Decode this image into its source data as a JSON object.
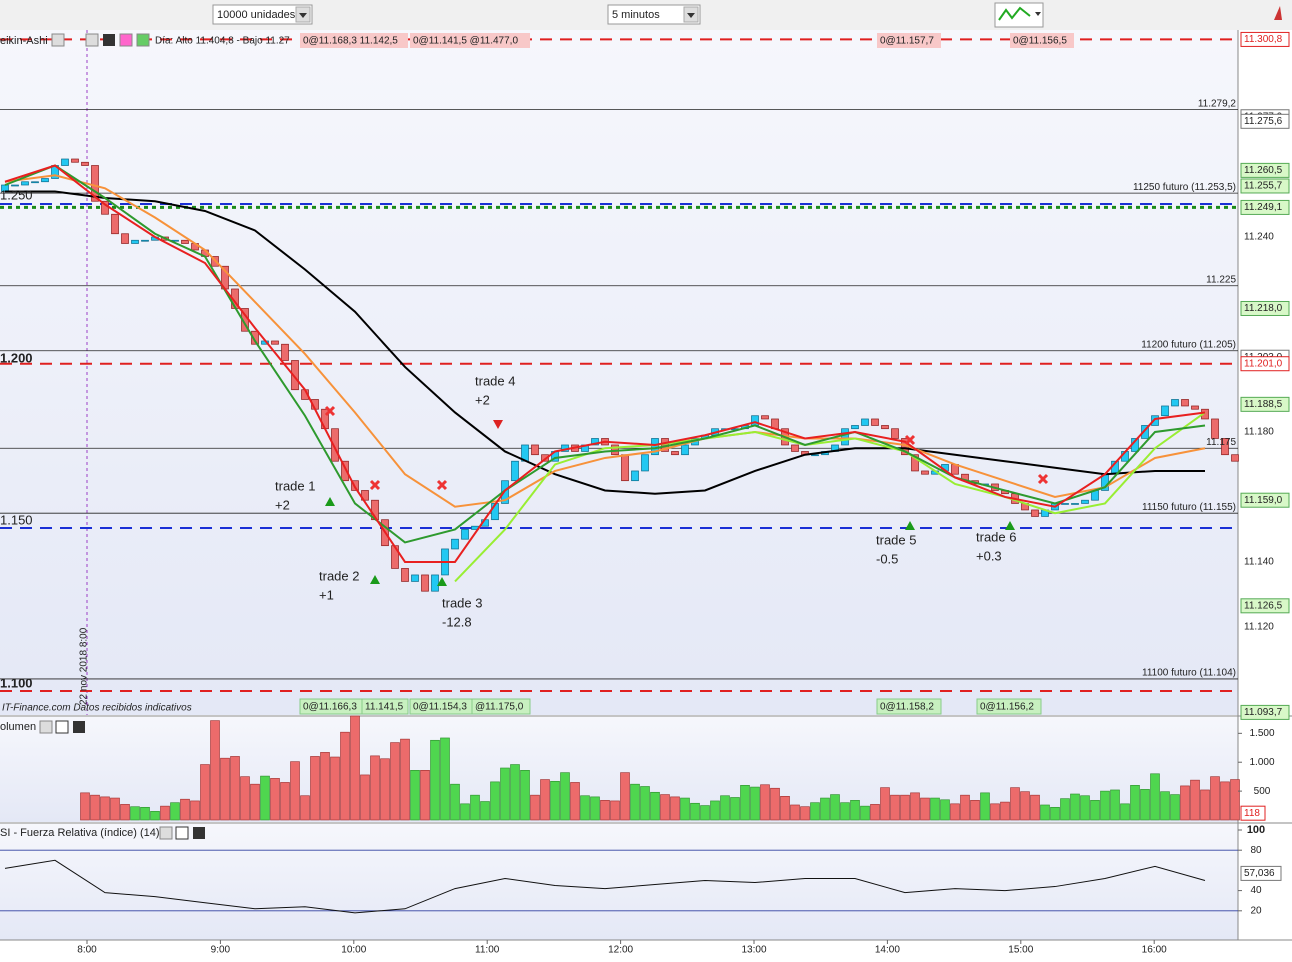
{
  "toolbar": {
    "quantity": "10000 unidades",
    "interval": "5 minutos"
  },
  "main_chart": {
    "indicator": "eikin-Ashi",
    "day_info": "Día: Alto 11.404,8 - Bajo 11.27",
    "source": "IT-Finance.com Datos recibidos indicativos",
    "date_marker": "22 nov 2018 8:00",
    "ylim": [
      11092.9,
      11303.7
    ],
    "left_labels": [
      "1.250",
      "1.200",
      "1.150",
      "1.100"
    ],
    "right_labels": [
      {
        "value": 11300.8,
        "label": "11.300,8",
        "kind": "red",
        "line": "red-dashed"
      },
      {
        "value": 11277.0,
        "label": "11.277,0",
        "kind": "white"
      },
      {
        "value": 11275.6,
        "label": "11.275,6",
        "kind": "white"
      },
      {
        "value": 11260.5,
        "label": "11.260,5",
        "kind": "green"
      },
      {
        "value": 11255.7,
        "label": "11.255,7",
        "kind": "green"
      },
      {
        "value": 11249.1,
        "label": "11.249,1",
        "kind": "green",
        "line": "green-dotted"
      },
      {
        "value": 11240,
        "label": "11.240",
        "kind": "plain"
      },
      {
        "value": 11218.0,
        "label": "11.218,0",
        "kind": "green"
      },
      {
        "value": 11203.0,
        "label": "11.203,0",
        "kind": "white"
      },
      {
        "value": 11201.0,
        "label": "11.201,0",
        "kind": "red",
        "line": "red-dashed"
      },
      {
        "value": 11188.5,
        "label": "11.188,5",
        "kind": "green"
      },
      {
        "value": 11180,
        "label": "11.180",
        "kind": "plain"
      },
      {
        "value": 11159.0,
        "label": "11.159,0",
        "kind": "green"
      },
      {
        "value": 11140,
        "label": "11.140",
        "kind": "plain"
      },
      {
        "value": 11126.5,
        "label": "11.126,5",
        "kind": "green"
      },
      {
        "value": 11120,
        "label": "11.120",
        "kind": "plain"
      },
      {
        "value": 11093.7,
        "label": "11.093,7",
        "kind": "green"
      }
    ],
    "levels": [
      {
        "value": 11279.2,
        "label": "11.279,2"
      },
      {
        "value": 11253.5,
        "label": "11250 futuro (11.253,5)"
      },
      {
        "value": 11225,
        "label": "11.225"
      },
      {
        "value": 11205,
        "label": "11200 futuro (11.205)"
      },
      {
        "value": 11175,
        "label": "11.175"
      },
      {
        "value": 11155,
        "label": "11150 futuro (11.155)"
      },
      {
        "value": 11104,
        "label": "11100 futuro (11.104)"
      }
    ],
    "order_tags_top": [
      "0@11.168,3 11.142,5",
      "0@11.141,5 @11.477,0",
      "0@11.157,7",
      "0@11.156,5"
    ],
    "order_tags_bottom": [
      "0@11.166,3",
      "11.141,5",
      "0@11.154,3",
      "@11.175,0",
      "0@11.158,2",
      "0@11.156,2"
    ],
    "trades": [
      {
        "name": "trade 1",
        "result": "+2"
      },
      {
        "name": "trade 2",
        "result": "+1"
      },
      {
        "name": "trade 3",
        "result": "-12.8"
      },
      {
        "name": "trade 4",
        "result": "+2"
      },
      {
        "name": "trade 5",
        "result": "-0.5"
      },
      {
        "name": "trade 6",
        "result": "+0.3"
      }
    ],
    "candles": {
      "open": [
        11254,
        11256,
        11256,
        11257,
        11257,
        11258,
        11262,
        11264,
        11263,
        11262,
        11251,
        11247,
        11241,
        11238,
        11239,
        11239,
        11240,
        11239,
        11239,
        11238,
        11236,
        11234,
        11231,
        11224,
        11218,
        11211,
        11207,
        11208,
        11207,
        11202,
        11193,
        11190,
        11187,
        11181,
        11171,
        11165,
        11162,
        11159,
        11153,
        11145,
        11138,
        11134,
        11136,
        11131,
        11136,
        11144,
        11147,
        11150,
        11151,
        11153,
        11158,
        11165,
        11171,
        11176,
        11173,
        11171,
        11174,
        11176,
        11174,
        11176,
        11178,
        11176,
        11173,
        11165,
        11168,
        11173,
        11178,
        11174,
        11173,
        11176,
        11178,
        11179,
        11181,
        11181,
        11181,
        11182,
        11185,
        11184,
        11181,
        11176,
        11174,
        11173,
        11173,
        11174,
        11176,
        11181,
        11182,
        11184,
        11182,
        11181,
        11178,
        11173,
        11168,
        11167,
        11168,
        11170,
        11167,
        11165,
        11164,
        11164,
        11162,
        11161,
        11158,
        11156,
        11154,
        11156,
        11158,
        11158,
        11158,
        11159,
        11162,
        11167,
        11171,
        11174,
        11178,
        11182,
        11185,
        11188,
        11190,
        11188,
        11187,
        11184,
        11178,
        11173
      ],
      "close": [
        11256,
        11256,
        11257,
        11257,
        11258,
        11262,
        11264,
        11263,
        11262,
        11251,
        11247,
        11241,
        11238,
        11239,
        11239,
        11240,
        11239,
        11239,
        11238,
        11236,
        11234,
        11231,
        11224,
        11218,
        11211,
        11207,
        11208,
        11207,
        11202,
        11193,
        11190,
        11187,
        11181,
        11171,
        11165,
        11162,
        11159,
        11153,
        11145,
        11138,
        11134,
        11136,
        11131,
        11136,
        11144,
        11147,
        11150,
        11151,
        11153,
        11158,
        11165,
        11171,
        11176,
        11173,
        11171,
        11174,
        11176,
        11174,
        11176,
        11178,
        11176,
        11173,
        11165,
        11168,
        11173,
        11178,
        11174,
        11173,
        11176,
        11178,
        11179,
        11181,
        11181,
        11181,
        11182,
        11185,
        11184,
        11181,
        11176,
        11174,
        11173,
        11173,
        11174,
        11176,
        11181,
        11182,
        11184,
        11182,
        11181,
        11178,
        11173,
        11168,
        11167,
        11168,
        11170,
        11167,
        11165,
        11164,
        11164,
        11162,
        11161,
        11158,
        11156,
        11154,
        11156,
        11158,
        11158,
        11158,
        11159,
        11162,
        11167,
        11171,
        11174,
        11178,
        11182,
        11185,
        11188,
        11190,
        11188,
        11187,
        11184,
        11178,
        11173,
        11171
      ]
    },
    "ma_index": [
      0,
      5,
      10,
      15,
      20,
      25,
      30,
      35,
      40,
      45,
      50,
      55,
      60,
      65,
      70,
      75,
      80,
      85,
      90,
      95,
      100,
      105,
      110,
      115,
      120
    ],
    "lines": [
      {
        "color": "#000000",
        "values": [
          11254,
          11254,
          11252,
          11251,
          11248,
          11242,
          11230,
          11217,
          11200,
          11186,
          11174,
          11167,
          11162,
          11161,
          11162,
          11168,
          11173,
          11175,
          11175,
          11173,
          11171,
          11169,
          11167,
          11168,
          11168
        ]
      },
      {
        "color": "#f7923a",
        "values": [
          11257,
          11259,
          11255,
          11246,
          11236,
          11220,
          11204,
          11186,
          11167,
          11157,
          11159,
          11168,
          11172,
          11174,
          11178,
          11180,
          11178,
          11178,
          11176,
          11170,
          11165,
          11160,
          11163,
          11172,
          11175
        ]
      },
      {
        "color": "#99ee33",
        "values": [
          null,
          null,
          null,
          null,
          null,
          null,
          null,
          null,
          null,
          11134,
          11150,
          11170,
          11175,
          11176,
          11178,
          11180,
          11176,
          11178,
          11174,
          11164,
          11160,
          11155,
          11158,
          11175,
          11186
        ]
      },
      {
        "color": "#2e9a2e",
        "values": [
          11256,
          11262,
          11252,
          11241,
          11234,
          11208,
          11185,
          11158,
          11146,
          11150,
          11162,
          11172,
          11174,
          11175,
          11178,
          11182,
          11176,
          11180,
          11174,
          11166,
          11162,
          11158,
          11163,
          11180,
          11182
        ]
      },
      {
        "color": "#e82020",
        "values": [
          11257,
          11262,
          11250,
          11240,
          11232,
          11212,
          11193,
          11163,
          11140,
          11140,
          11162,
          11174,
          11177,
          11176,
          11179,
          11183,
          11178,
          11180,
          11177,
          11166,
          11160,
          11157,
          11167,
          11184,
          11186
        ]
      }
    ]
  },
  "volume_chart": {
    "title": "olumen",
    "ylim": [
      0,
      1800
    ],
    "yticks": [
      {
        "value": 1500,
        "label": "1.500"
      },
      {
        "value": 1000,
        "label": "1.000"
      },
      500
    ],
    "current": 118,
    "values": [
      null,
      null,
      null,
      null,
      null,
      null,
      null,
      null,
      470,
      430,
      400,
      380,
      270,
      230,
      220,
      150,
      240,
      300,
      360,
      330,
      960,
      1720,
      1070,
      1100,
      750,
      620,
      760,
      720,
      650,
      1010,
      420,
      1100,
      1170,
      1090,
      1520,
      1800,
      780,
      1110,
      1060,
      1340,
      1400,
      860,
      860,
      1380,
      1420,
      620,
      280,
      430,
      320,
      660,
      900,
      960,
      860,
      430,
      700,
      670,
      820,
      650,
      420,
      400,
      340,
      330,
      820,
      620,
      580,
      480,
      440,
      400,
      380,
      290,
      250,
      330,
      420,
      390,
      600,
      570,
      610,
      550,
      410,
      260,
      230,
      300,
      380,
      440,
      300,
      340,
      240,
      270,
      560,
      430,
      430,
      470,
      380,
      380,
      350,
      280,
      430,
      340,
      470,
      280,
      310,
      560,
      490,
      430,
      260,
      220,
      370,
      450,
      420,
      340,
      500,
      520,
      280,
      600,
      530,
      800,
      490,
      440,
      590,
      690,
      520,
      750,
      660,
      700
    ]
  },
  "rsi_chart": {
    "title": "SI - Fuerza Relativa (índice) (14)",
    "ylim": [
      0,
      100
    ],
    "yticks": [
      100,
      80,
      40,
      20
    ],
    "bands": [
      80,
      20
    ],
    "current": {
      "value": 57.036,
      "label": "57,036"
    },
    "index": [
      0,
      5,
      10,
      15,
      20,
      25,
      30,
      35,
      40,
      45,
      50,
      55,
      60,
      65,
      70,
      75,
      80,
      85,
      90,
      95,
      100,
      105,
      110,
      115,
      120
    ],
    "values": [
      62,
      70,
      38,
      34,
      28,
      22,
      24,
      18,
      22,
      42,
      52,
      45,
      42,
      46,
      50,
      48,
      52,
      52,
      38,
      42,
      40,
      44,
      52,
      64,
      50
    ]
  },
  "time_axis": [
    "8:00",
    "9:00",
    "10:00",
    "11:00",
    "12:00",
    "13:00",
    "14:00",
    "15:00",
    "16:00"
  ]
}
